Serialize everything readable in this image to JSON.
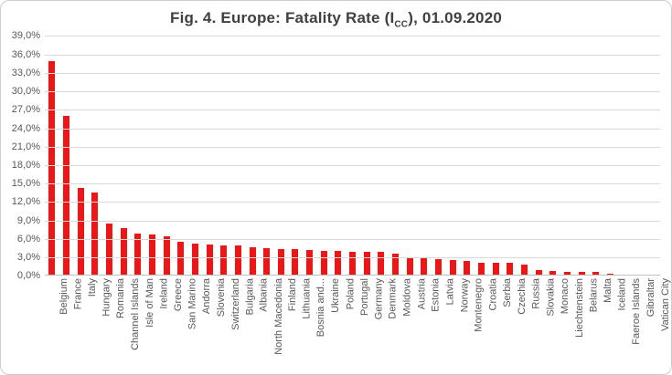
{
  "title": {
    "prefix": "Fig. 4. Europe:  Fatality  Rate (I",
    "subscript": "CC",
    "suffix": "), 01.09.2020"
  },
  "colors": {
    "bar": "#ed1515",
    "grid": "#d9d9d9",
    "baseline": "#c0c0c0",
    "axis_text": "#595959",
    "title_text": "#404040",
    "frame_border": "#cdcdcd"
  },
  "chart_data": {
    "type": "bar",
    "title": "Fig. 4. Europe: Fatality Rate (I_CC), 01.09.2020",
    "xlabel": "",
    "ylabel": "",
    "ylim": [
      0,
      39
    ],
    "ytick_step": 3,
    "ytick_labels": [
      "0,0%",
      "3,0%",
      "6,0%",
      "9,0%",
      "12,0%",
      "15,0%",
      "18,0%",
      "21,0%",
      "24,0%",
      "27,0%",
      "30,0%",
      "33,0%",
      "36,0%",
      "39,0%"
    ],
    "grid": true,
    "legend": false,
    "categories": [
      "Belgium",
      "France",
      "Italy",
      "Hungary",
      "Romania",
      "Channel Islands",
      "Isle of Man",
      "Ireland",
      "Greece",
      "San Marino",
      "Andorra",
      "Slovenia",
      "Switzerland",
      "Bulgaria",
      "Albania",
      "North Macedonia",
      "Finland",
      "Lithuania",
      "Bosnia and...",
      "Ukraine",
      "Poland",
      "Portugal",
      "Germany",
      "Denmark",
      "Moldova",
      "Austria",
      "Estonia",
      "Latvia",
      "Norway",
      "Montenegro",
      "Croatia",
      "Serbia",
      "Czechia",
      "Russia",
      "Slovakia",
      "Monaco",
      "Liechtenstein",
      "Belarus",
      "Malta",
      "Iceland",
      "Faeroe Islands",
      "Gibraltar",
      "Vatican City"
    ],
    "values": [
      34.9,
      26.0,
      14.3,
      13.6,
      8.5,
      7.8,
      6.9,
      6.8,
      6.4,
      5.6,
      5.3,
      5.1,
      5.0,
      4.9,
      4.7,
      4.5,
      4.4,
      4.3,
      4.2,
      4.1,
      4.0,
      3.9,
      3.9,
      3.9,
      3.6,
      3.1,
      3.0,
      2.8,
      2.6,
      2.4,
      2.2,
      2.2,
      2.1,
      1.9,
      1.0,
      0.8,
      0.7,
      0.7,
      0.6,
      0.3,
      0.0,
      0.0,
      0.0
    ]
  }
}
